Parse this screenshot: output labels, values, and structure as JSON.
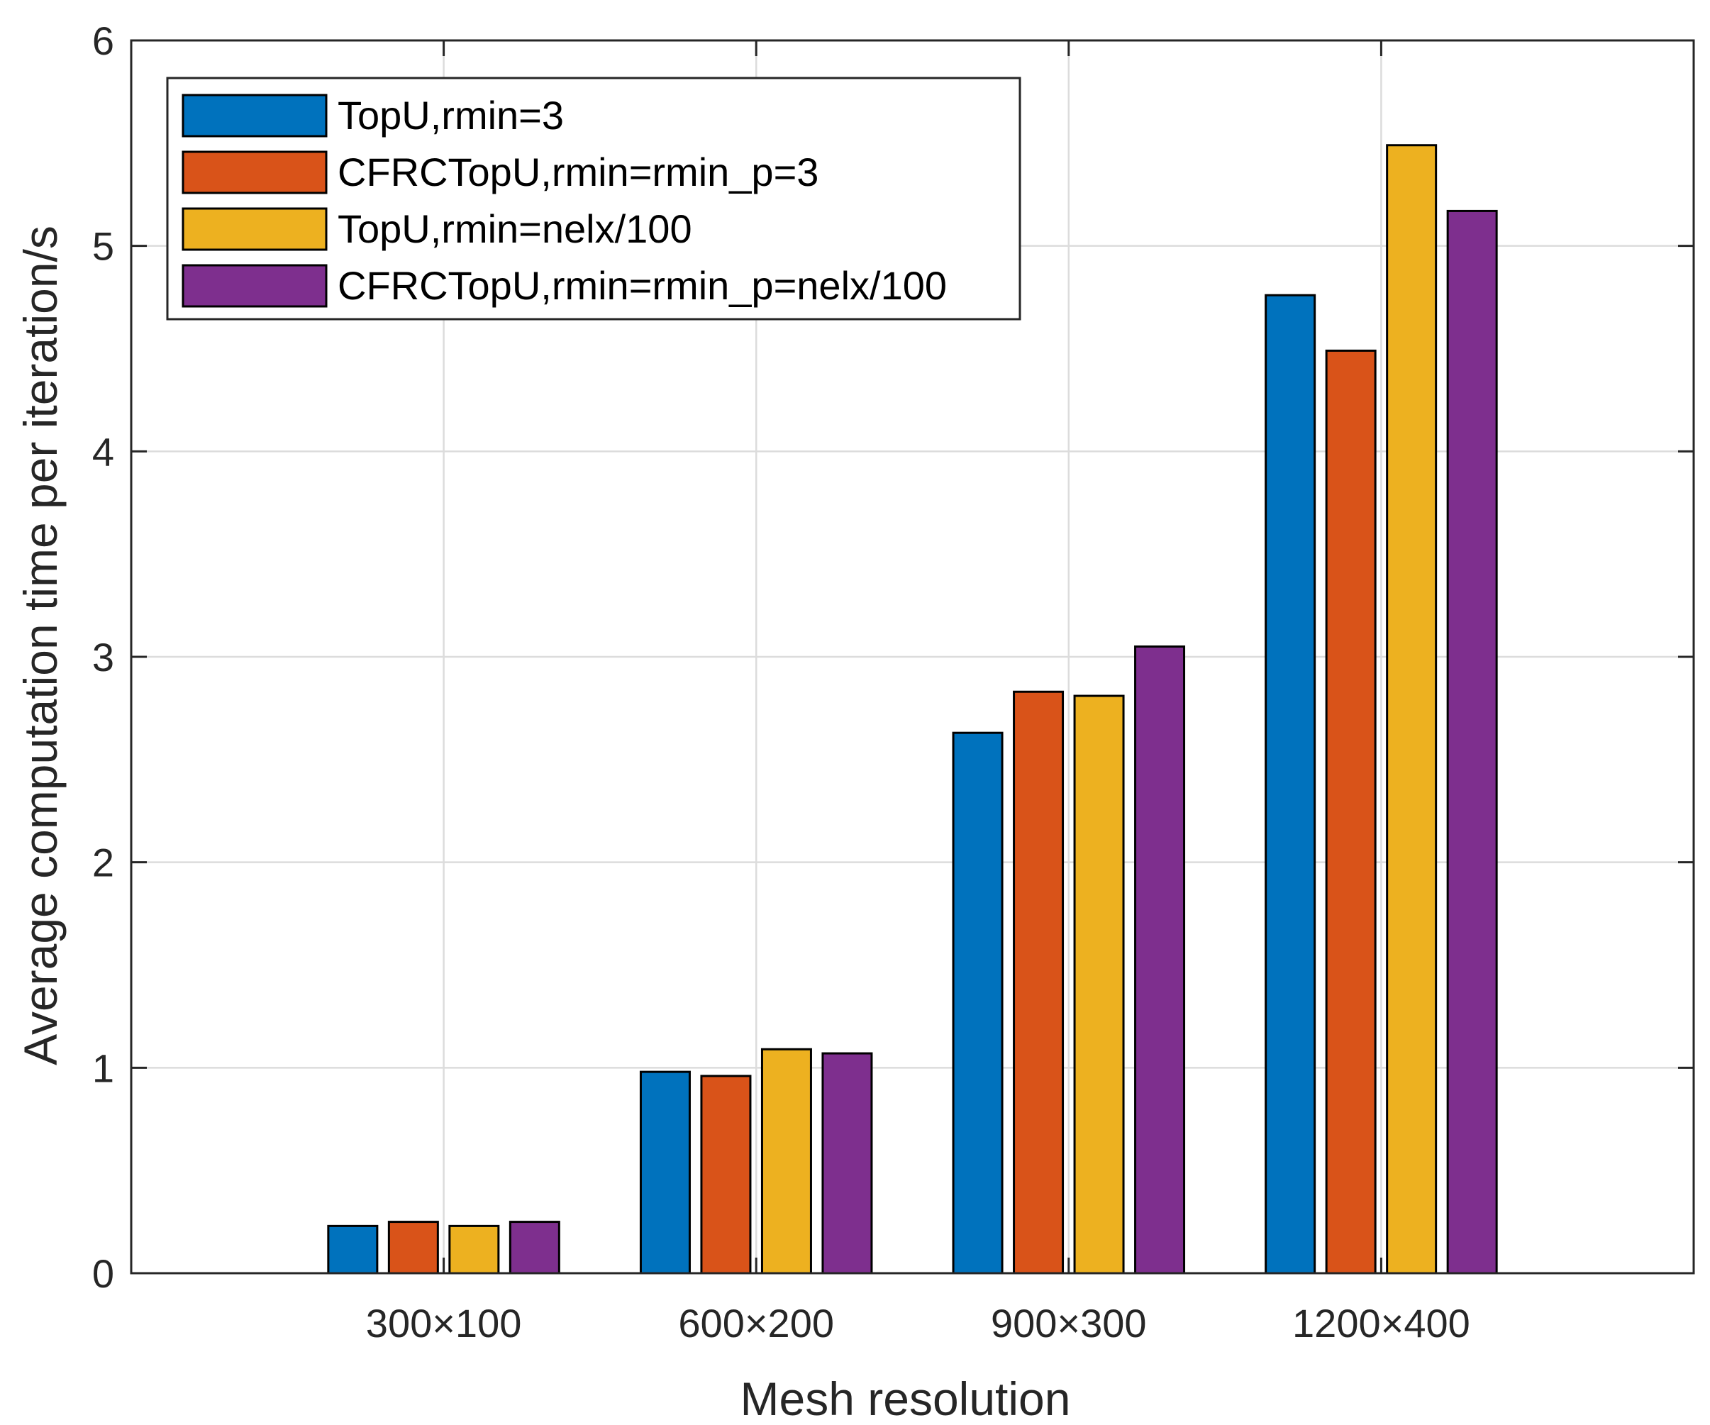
{
  "chart_data": {
    "type": "bar",
    "title": "",
    "xlabel": "Mesh resolution",
    "ylabel": "Average computation time per iteration/s",
    "categories": [
      "300×100",
      "600×200",
      "900×300",
      "1200×400"
    ],
    "ylim": [
      0,
      6
    ],
    "yticks": [
      0,
      1,
      2,
      3,
      4,
      5,
      6
    ],
    "grid": true,
    "legend_position": "top-left",
    "series": [
      {
        "name": "TopU,rmin=3",
        "color": "#0072BD",
        "values": [
          0.23,
          0.98,
          2.63,
          4.76
        ]
      },
      {
        "name": "CFRCTopU,rmin=rmin_p=3",
        "color": "#D95319",
        "values": [
          0.25,
          0.96,
          2.83,
          4.49
        ]
      },
      {
        "name": "TopU,rmin=nelx/100",
        "color": "#EDB120",
        "values": [
          0.23,
          1.09,
          2.81,
          5.49
        ]
      },
      {
        "name": "CFRCTopU,rmin=rmin_p=nelx/100",
        "color": "#7E2F8E",
        "values": [
          0.25,
          1.07,
          3.05,
          5.17
        ]
      }
    ]
  }
}
